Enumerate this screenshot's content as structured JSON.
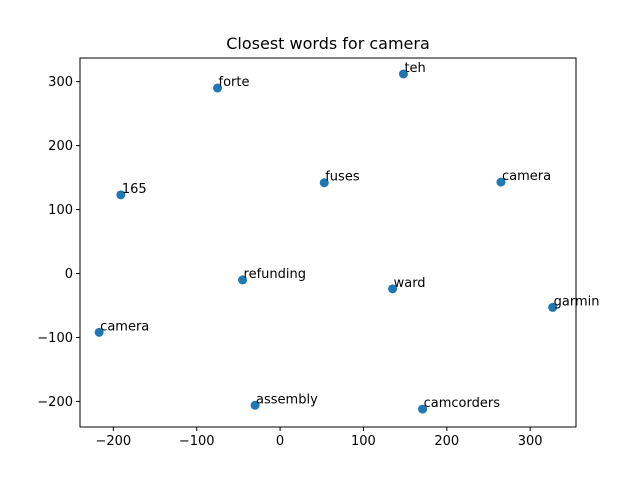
{
  "chart_data": {
    "type": "scatter",
    "title": "Closest words for camera",
    "xlabel": "",
    "ylabel": "",
    "xlim": [
      -240,
      355
    ],
    "ylim": [
      -240,
      337
    ],
    "xticks": [
      -200,
      -100,
      0,
      100,
      200,
      300
    ],
    "yticks": [
      -200,
      -100,
      0,
      100,
      200,
      300
    ],
    "grid": false,
    "marker_color": "#1f77b4",
    "points": [
      {
        "label": "forte",
        "x": -75,
        "y": 290
      },
      {
        "label": "teh",
        "x": 148,
        "y": 312
      },
      {
        "label": "165",
        "x": -191,
        "y": 123
      },
      {
        "label": "fuses",
        "x": 53,
        "y": 142
      },
      {
        "label": "camera",
        "x": 265,
        "y": 143
      },
      {
        "label": "refunding",
        "x": -45,
        "y": -10
      },
      {
        "label": "ward",
        "x": 135,
        "y": -24
      },
      {
        "label": "garmin",
        "x": 327,
        "y": -53
      },
      {
        "label": "camera",
        "x": -217,
        "y": -92
      },
      {
        "label": "assembly",
        "x": -30,
        "y": -206
      },
      {
        "label": "camcorders",
        "x": 171,
        "y": -212
      }
    ]
  }
}
